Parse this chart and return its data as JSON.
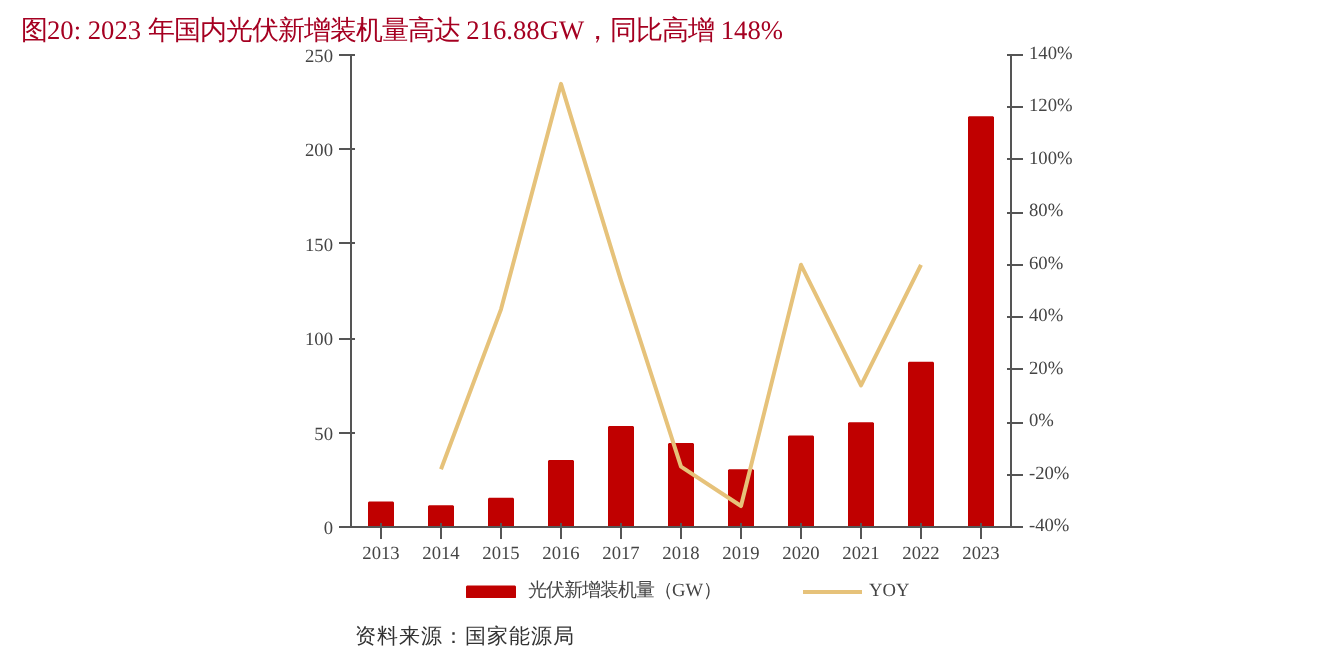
{
  "chart_data": {
    "type": "bar",
    "title": "图20:   2023 年国内光伏新增装机量高达 216.88GW，同比高增 148%",
    "categories": [
      "2013",
      "2014",
      "2015",
      "2016",
      "2017",
      "2018",
      "2019",
      "2020",
      "2021",
      "2022",
      "2023"
    ],
    "series": [
      {
        "name": "光伏新增装机量（GW）",
        "color": "#c00000",
        "values": [
          13,
          11,
          15,
          35,
          53,
          44,
          30,
          48,
          55,
          87,
          217
        ]
      },
      {
        "name": "YOY",
        "color": "#e6c27a",
        "type": "line",
        "axis": "y2",
        "values": [
          null,
          -18,
          43,
          129,
          54,
          -17,
          -32,
          60,
          14,
          60,
          null
        ]
      }
    ],
    "ylim": [
      0,
      250
    ],
    "yticks": [
      0,
      50,
      100,
      150,
      200,
      250
    ],
    "y2lim": [
      -40,
      140
    ],
    "y2ticks": [
      {
        "value": -40,
        "label": "-40%"
      },
      {
        "value": -20,
        "label": "-20%"
      },
      {
        "value": 0,
        "label": "0%"
      },
      {
        "value": 20,
        "label": "20%"
      },
      {
        "value": 40,
        "label": "40%"
      },
      {
        "value": 60,
        "label": "60%"
      },
      {
        "value": 80,
        "label": "80%"
      },
      {
        "value": 100,
        "label": "100%"
      },
      {
        "value": 120,
        "label": "120%"
      },
      {
        "value": 140,
        "label": "140%"
      }
    ],
    "legend": "bottom",
    "grid": false,
    "annotations": [
      "资料来源：国家能源局"
    ]
  }
}
